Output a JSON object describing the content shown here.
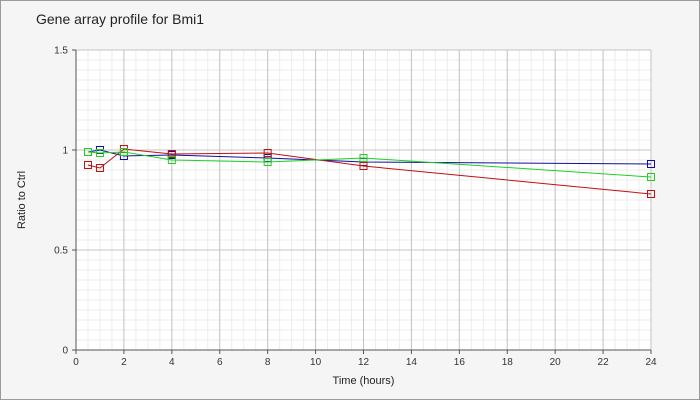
{
  "chart_data": {
    "type": "line",
    "title": "Gene array profile for Bmi1",
    "xlabel": "Time (hours)",
    "ylabel": "Ratio to Ctrl",
    "xlim": [
      0,
      24
    ],
    "ylim": [
      0,
      1.5
    ],
    "xticks": [
      0,
      2,
      4,
      6,
      8,
      10,
      12,
      14,
      16,
      18,
      20,
      22,
      24
    ],
    "xtick_labels": [
      "0",
      "2",
      "4",
      "6",
      "8",
      "10",
      "12",
      "14",
      "16",
      "18",
      "20",
      "22",
      "24"
    ],
    "yticks": [
      0,
      0.5,
      1,
      1.5
    ],
    "ytick_labels": [
      "0",
      "0.5",
      "1",
      "1.5"
    ],
    "grid": true,
    "marker": "open-square",
    "series": [
      {
        "color": "#1010a0",
        "x": [
          0.5,
          1,
          2,
          4,
          8,
          12,
          24
        ],
        "y": [
          0.99,
          1.0,
          0.97,
          0.975,
          0.96,
          0.94,
          0.93
        ]
      },
      {
        "color": "#c01010",
        "x": [
          0.5,
          1,
          2,
          4,
          8,
          12,
          24
        ],
        "y": [
          0.925,
          0.91,
          1.005,
          0.98,
          0.985,
          0.92,
          0.78
        ]
      },
      {
        "color": "#20d020",
        "x": [
          0.5,
          1,
          2,
          4,
          8,
          12,
          24
        ],
        "y": [
          0.99,
          0.985,
          0.99,
          0.95,
          0.94,
          0.96,
          0.865
        ]
      }
    ]
  }
}
